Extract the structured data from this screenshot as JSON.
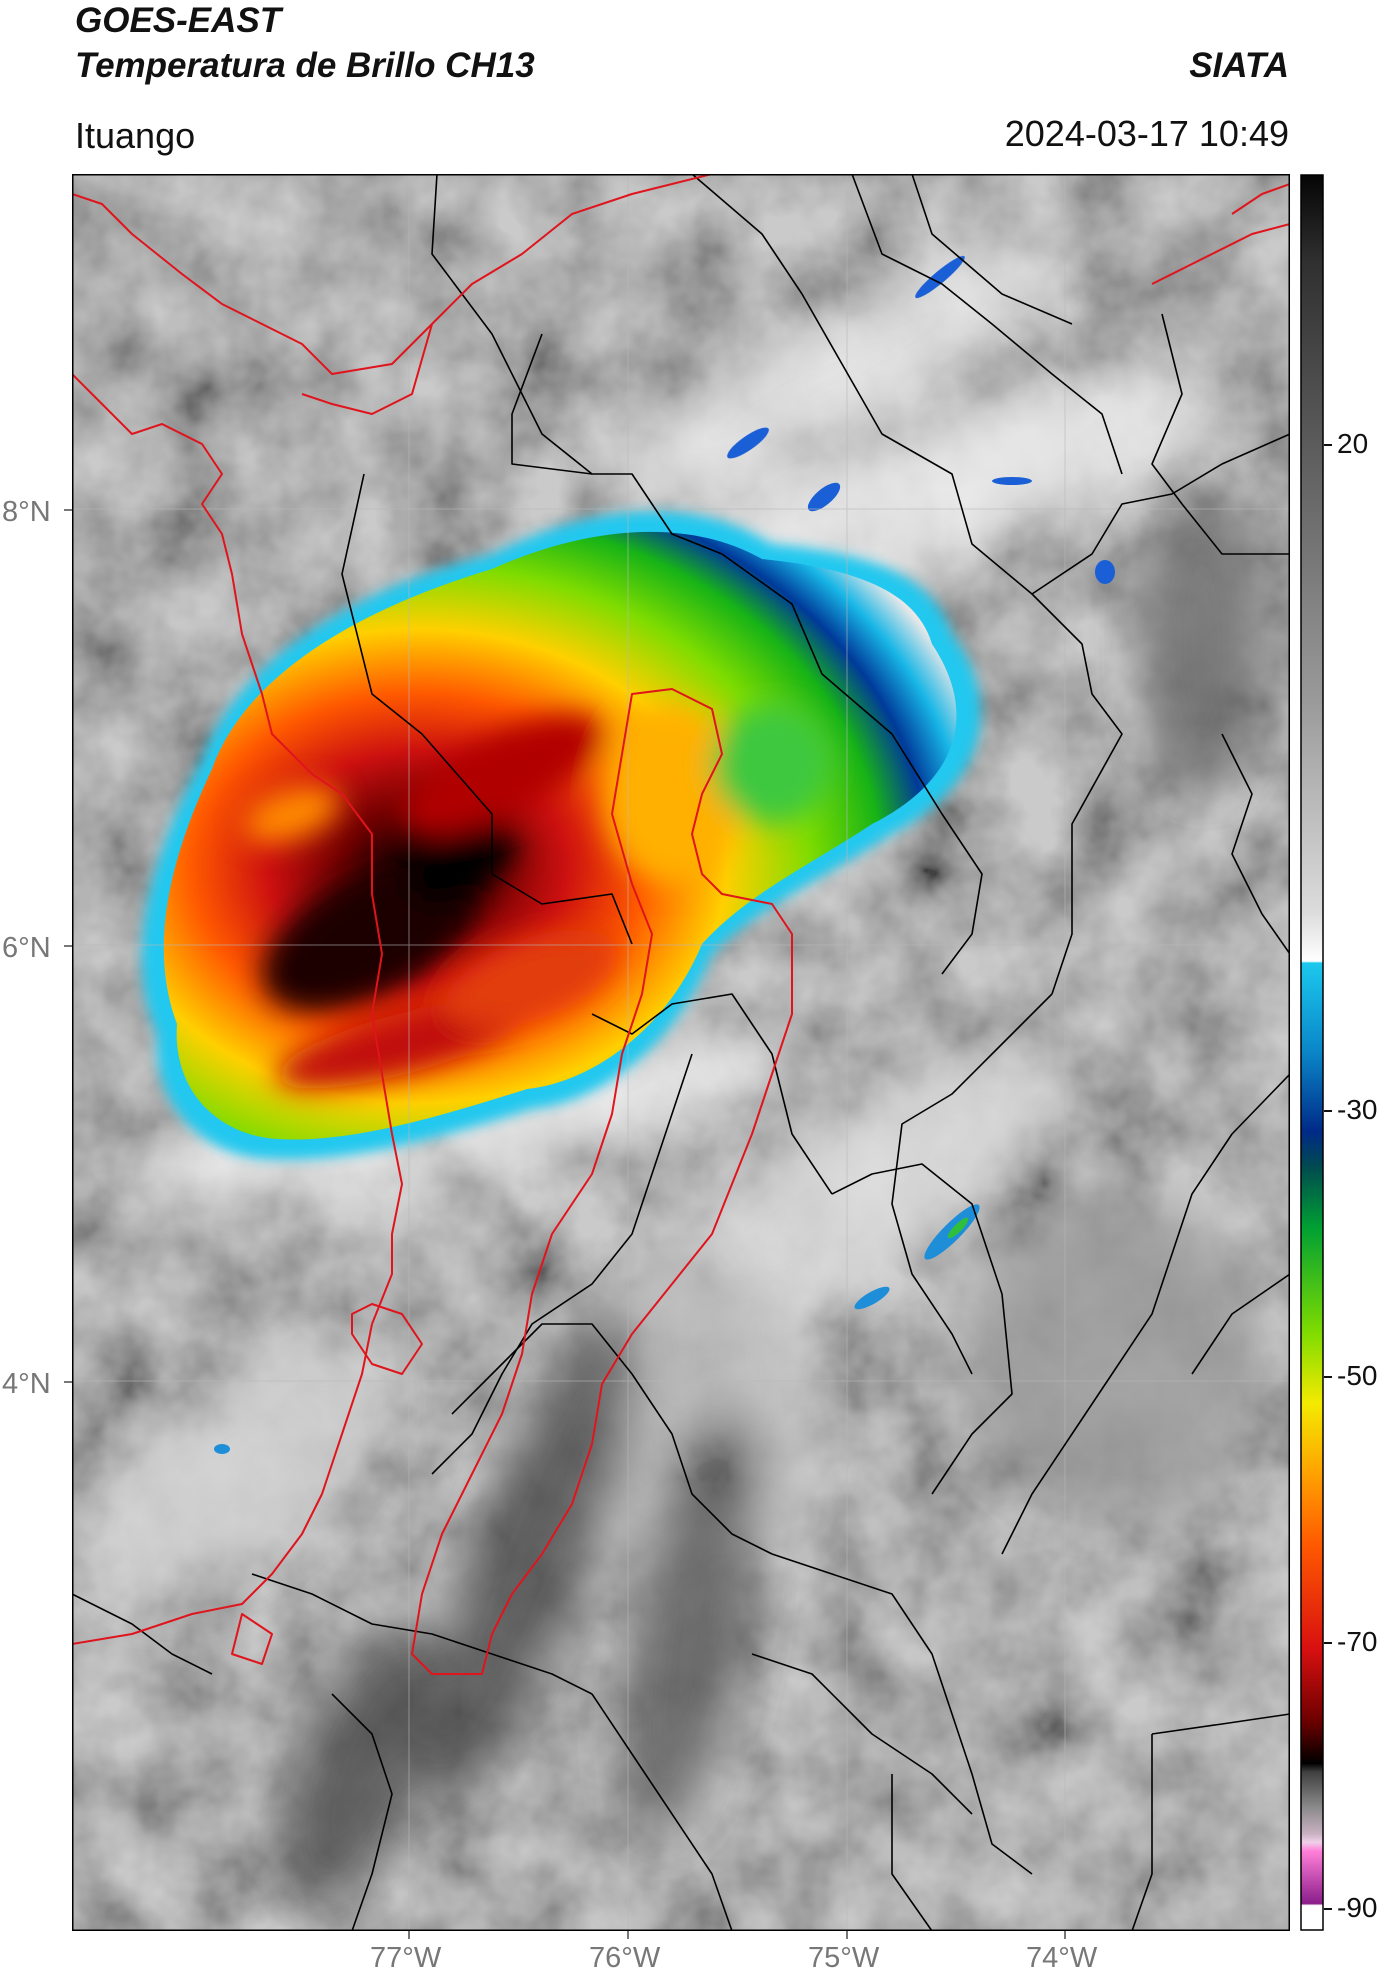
{
  "header": {
    "title_line1": "GOES-EAST",
    "title_line2": "Temperatura de Brillo CH13",
    "agency": "SIATA",
    "region": "Ituango",
    "timestamp": "2024-03-17 10:49"
  },
  "map": {
    "lat_ticks": [
      "8°N",
      "6°N",
      "4°N"
    ],
    "lon_ticks": [
      "77°W",
      "76°W",
      "75°W",
      "74°W"
    ],
    "lat_tick_values": [
      8,
      6,
      4
    ],
    "lon_tick_values": [
      -77,
      -76,
      -75,
      -74
    ],
    "extent": {
      "lon_min": -78.55,
      "lon_max": -73.05,
      "lat_min": 1.45,
      "lat_max": 9.5
    }
  },
  "colorbar": {
    "labels": [
      "20",
      "-30",
      "-50",
      "-70",
      "-90"
    ],
    "label_values": [
      20,
      -30,
      -50,
      -70,
      -90
    ],
    "range": [
      -92,
      40
    ]
  },
  "colors": {
    "land_boundary": "#000000",
    "coast_dept_boundary": "#e0141c",
    "cloud_top_cold": "#000000",
    "cloud_top_warm": "#ffffff"
  }
}
